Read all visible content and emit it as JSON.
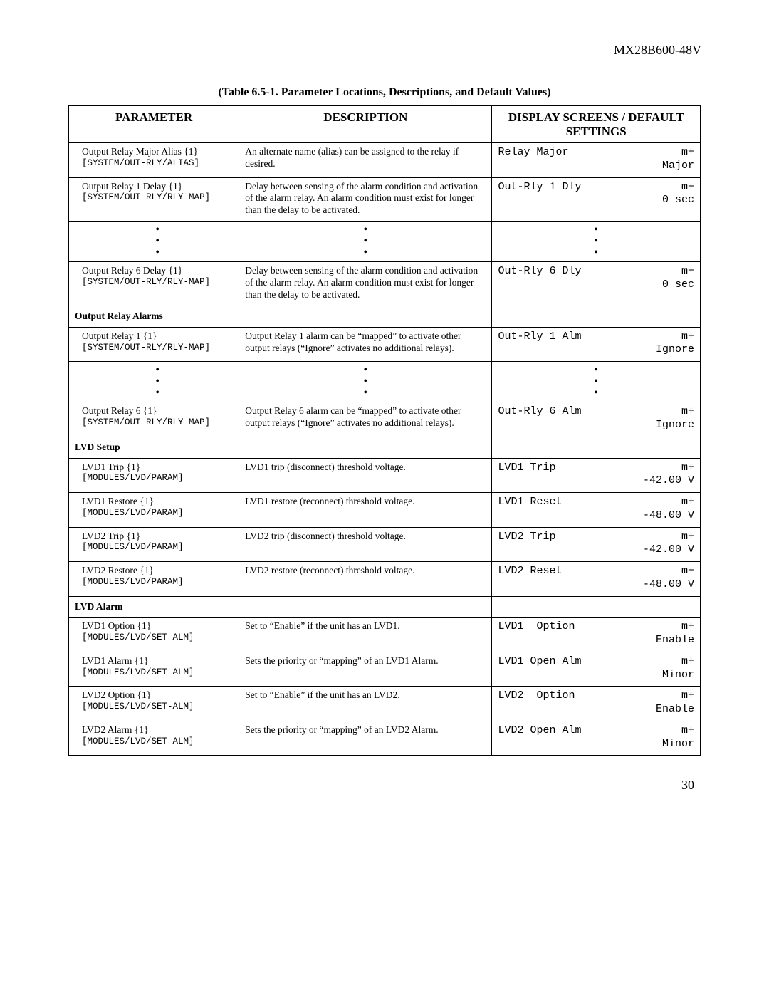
{
  "doc_id": "MX28B600-48V",
  "caption": "(Table 6.5-1.  Parameter Locations, Descriptions, and Default Values)",
  "page_number": "30",
  "columns": {
    "param": "PARAMETER",
    "desc": "DESCRIPTION",
    "disp": "DISPLAY SCREENS / DEFAULT SETTINGS"
  },
  "rows": [
    {
      "type": "entry",
      "param_name": "Output Relay Major Alias  {1}",
      "param_path": "[SYSTEM/OUT-RLY/ALIAS]",
      "desc": "An alternate name (alias) can be assigned to the relay if desired.",
      "disp_l": "Relay Major",
      "disp_r": "m+",
      "disp_val": "Major"
    },
    {
      "type": "entry",
      "param_name": "Output Relay 1 Delay  {1}",
      "param_path": "[SYSTEM/OUT-RLY/RLY-MAP]",
      "desc": "Delay between sensing of the alarm condition and activation of the alarm relay.  An alarm condition must exist for longer than the delay to be activated.",
      "disp_l": "Out-Rly 1 Dly",
      "disp_r": "m+",
      "disp_val": "0 sec"
    },
    {
      "type": "dots"
    },
    {
      "type": "entry",
      "param_name": "Output Relay 6 Delay  {1}",
      "param_path": "[SYSTEM/OUT-RLY/RLY-MAP]",
      "desc": "Delay between sensing of the alarm condition and activation of the alarm relay.  An alarm condition must exist for longer than the delay to be activated.",
      "disp_l": "Out-Rly 6 Dly",
      "disp_r": "m+",
      "disp_val": "0 sec"
    },
    {
      "type": "section",
      "label": "Output Relay Alarms"
    },
    {
      "type": "entry",
      "param_name": "Output Relay 1  {1}",
      "param_path": "[SYSTEM/OUT-RLY/RLY-MAP]",
      "desc": "Output Relay 1 alarm can be “mapped” to activate other output relays (“Ignore” activates no additional relays).",
      "disp_l": "Out-Rly 1 Alm",
      "disp_r": "m+",
      "disp_val": "Ignore"
    },
    {
      "type": "dots"
    },
    {
      "type": "entry",
      "param_name": "Output Relay 6  {1}",
      "param_path": "[SYSTEM/OUT-RLY/RLY-MAP]",
      "desc": "Output Relay 6 alarm can be “mapped” to activate other output relays (“Ignore” activates no additional relays).",
      "disp_l": "Out-Rly 6 Alm",
      "disp_r": "m+",
      "disp_val": "Ignore"
    },
    {
      "type": "section_sc",
      "label": "LVD Setup"
    },
    {
      "type": "entry",
      "param_name": "LVD1 Trip  {1}",
      "param_path": "[MODULES/LVD/PARAM]",
      "desc": "LVD1 trip (disconnect) threshold voltage.",
      "disp_l": "LVD1 Trip",
      "disp_r": "m+",
      "disp_val": "-42.00 V"
    },
    {
      "type": "entry",
      "param_name": "LVD1 Restore  {1}",
      "param_path": "[MODULES/LVD/PARAM]",
      "desc": "LVD1 restore (reconnect) threshold voltage.",
      "disp_l": "LVD1 Reset",
      "disp_r": "m+",
      "disp_val": "-48.00 V"
    },
    {
      "type": "entry",
      "param_name": "LVD2 Trip  {1}",
      "param_path": "[MODULES/LVD/PARAM]",
      "desc": "LVD2 trip (disconnect) threshold voltage.",
      "disp_l": "LVD2 Trip",
      "disp_r": "m+",
      "disp_val": "-42.00 V"
    },
    {
      "type": "entry",
      "param_name": "LVD2 Restore  {1}",
      "param_path": "[MODULES/LVD/PARAM]",
      "desc": "LVD2 restore (reconnect) threshold voltage.",
      "disp_l": "LVD2 Reset",
      "disp_r": "m+",
      "disp_val": "-48.00 V"
    },
    {
      "type": "section",
      "label": "LVD Alarm"
    },
    {
      "type": "entry",
      "param_name": "LVD1 Option  {1}",
      "param_path": "[MODULES/LVD/SET-ALM]",
      "desc": "Set to “Enable” if the unit has an LVD1.",
      "disp_l": "LVD1  Option",
      "disp_r": "m+",
      "disp_val": "Enable"
    },
    {
      "type": "entry",
      "param_name": "LVD1 Alarm  {1}",
      "param_path": "[MODULES/LVD/SET-ALM]",
      "desc": "Sets the priority or “mapping” of an LVD1 Alarm.",
      "disp_l": "LVD1 Open Alm",
      "disp_r": "m+",
      "disp_val": "Minor"
    },
    {
      "type": "entry",
      "param_name": "LVD2 Option  {1}",
      "param_path": "[MODULES/LVD/SET-ALM]",
      "desc": "Set to “Enable” if the unit has an LVD2.",
      "disp_l": "LVD2  Option",
      "disp_r": "m+",
      "disp_val": "Enable"
    },
    {
      "type": "entry",
      "param_name": "LVD2 Alarm  {1}",
      "param_path": "[MODULES/LVD/SET-ALM]",
      "desc": "Sets the priority or “mapping” of an LVD2 Alarm.",
      "disp_l": "LVD2 Open Alm",
      "disp_r": "m+",
      "disp_val": "Minor"
    }
  ]
}
